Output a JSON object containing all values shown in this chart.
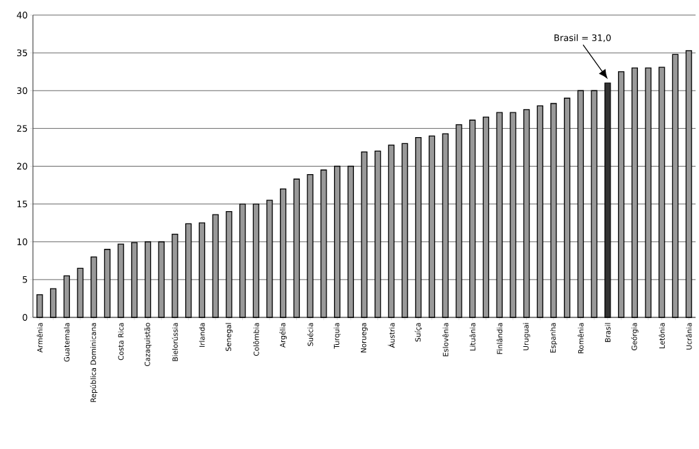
{
  "chart_data": {
    "type": "bar",
    "categories": [
      "Armênia",
      null,
      "Guatemala",
      null,
      "República Dominicana",
      null,
      "Costa Rica",
      null,
      "Cazaquistão",
      null,
      "Bielorússia",
      null,
      "Irlanda",
      null,
      "Senegal",
      null,
      "Colômbia",
      null,
      "Argélia",
      null,
      "Suécia",
      null,
      "Turquia",
      null,
      "Noruega",
      null,
      "Áustria",
      null,
      "Suíça",
      null,
      "Eslovênia",
      null,
      "Lituânia",
      null,
      "Finlândia",
      null,
      "Uruguai",
      null,
      "Espanha",
      null,
      "Romênia",
      null,
      "Brasil",
      null,
      "Geórgia",
      null,
      "Letônia",
      null,
      "Ucrânia"
    ],
    "values": [
      3,
      3.8,
      5.5,
      6.5,
      8,
      9,
      9.7,
      9.9,
      10,
      10,
      11,
      12.4,
      12.5,
      13.6,
      14,
      15,
      15,
      15.5,
      17,
      18.3,
      18.9,
      19.5,
      20,
      20,
      21.9,
      22,
      22.8,
      23,
      23.8,
      24,
      24.3,
      25.5,
      26.1,
      26.5,
      27.1,
      27.1,
      27.5,
      28,
      28.3,
      29,
      30,
      30,
      31,
      32.5,
      33,
      33,
      33.1,
      34.8,
      35.3
    ],
    "colors": [
      "#999999",
      "#999999",
      "#999999",
      "#999999",
      "#999999",
      "#999999",
      "#999999",
      "#999999",
      "#999999",
      "#999999",
      "#999999",
      "#999999",
      "#999999",
      "#999999",
      "#999999",
      "#999999",
      "#999999",
      "#999999",
      "#999999",
      "#999999",
      "#999999",
      "#999999",
      "#999999",
      "#999999",
      "#999999",
      "#999999",
      "#999999",
      "#999999",
      "#999999",
      "#999999",
      "#999999",
      "#999999",
      "#999999",
      "#999999",
      "#999999",
      "#999999",
      "#999999",
      "#999999",
      "#999999",
      "#999999",
      "#999999",
      "#999999",
      "#333333",
      "#999999",
      "#999999",
      "#999999",
      "#999999",
      "#999999",
      "#999999"
    ],
    "ylim": [
      0,
      40
    ],
    "yticks": [
      0,
      5,
      10,
      15,
      20,
      25,
      30,
      35,
      40
    ],
    "grid": "y",
    "annotations": [
      "Brasil = 31,0"
    ]
  }
}
